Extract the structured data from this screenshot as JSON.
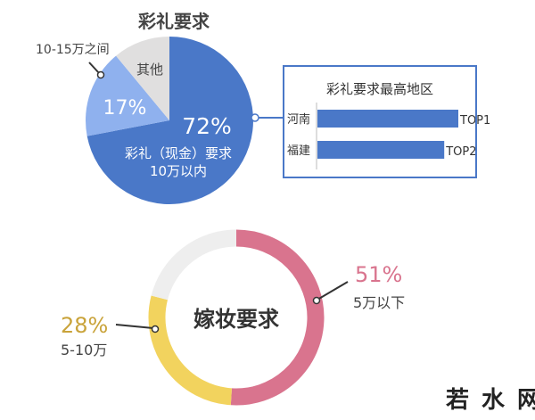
{
  "chart_data": [
    {
      "type": "pie",
      "title": "彩礼要求",
      "slices": [
        {
          "label": "彩礼（现金）要求10万以内",
          "label_line1": "彩礼（现金）要求",
          "label_line2": "10万以内",
          "value": 72,
          "value_label": "72%",
          "color": "#4a78c8"
        },
        {
          "label": "10-15万之间",
          "value": 17,
          "value_label": "17%",
          "color": "#8fb1ee"
        },
        {
          "label": "其他",
          "value": 11,
          "color": "#e0dfdf"
        }
      ]
    },
    {
      "type": "bar",
      "title": "彩礼要求最高地区",
      "categories": [
        "河南",
        "福建"
      ],
      "values": [
        100,
        90
      ],
      "data_labels": [
        "TOP1",
        "TOP2"
      ],
      "color": "#4a78c8"
    },
    {
      "type": "pie",
      "title": "嫁妆要求",
      "donut": true,
      "slices": [
        {
          "label": "5万以下",
          "value": 51,
          "value_label": "51%",
          "color": "#d9748e"
        },
        {
          "label": "5-10万",
          "value": 28,
          "value_label": "28%",
          "color": "#f2d35e"
        },
        {
          "label": "",
          "value": 21,
          "color": "#eeeeee"
        }
      ]
    }
  ],
  "watermark": "若水网"
}
